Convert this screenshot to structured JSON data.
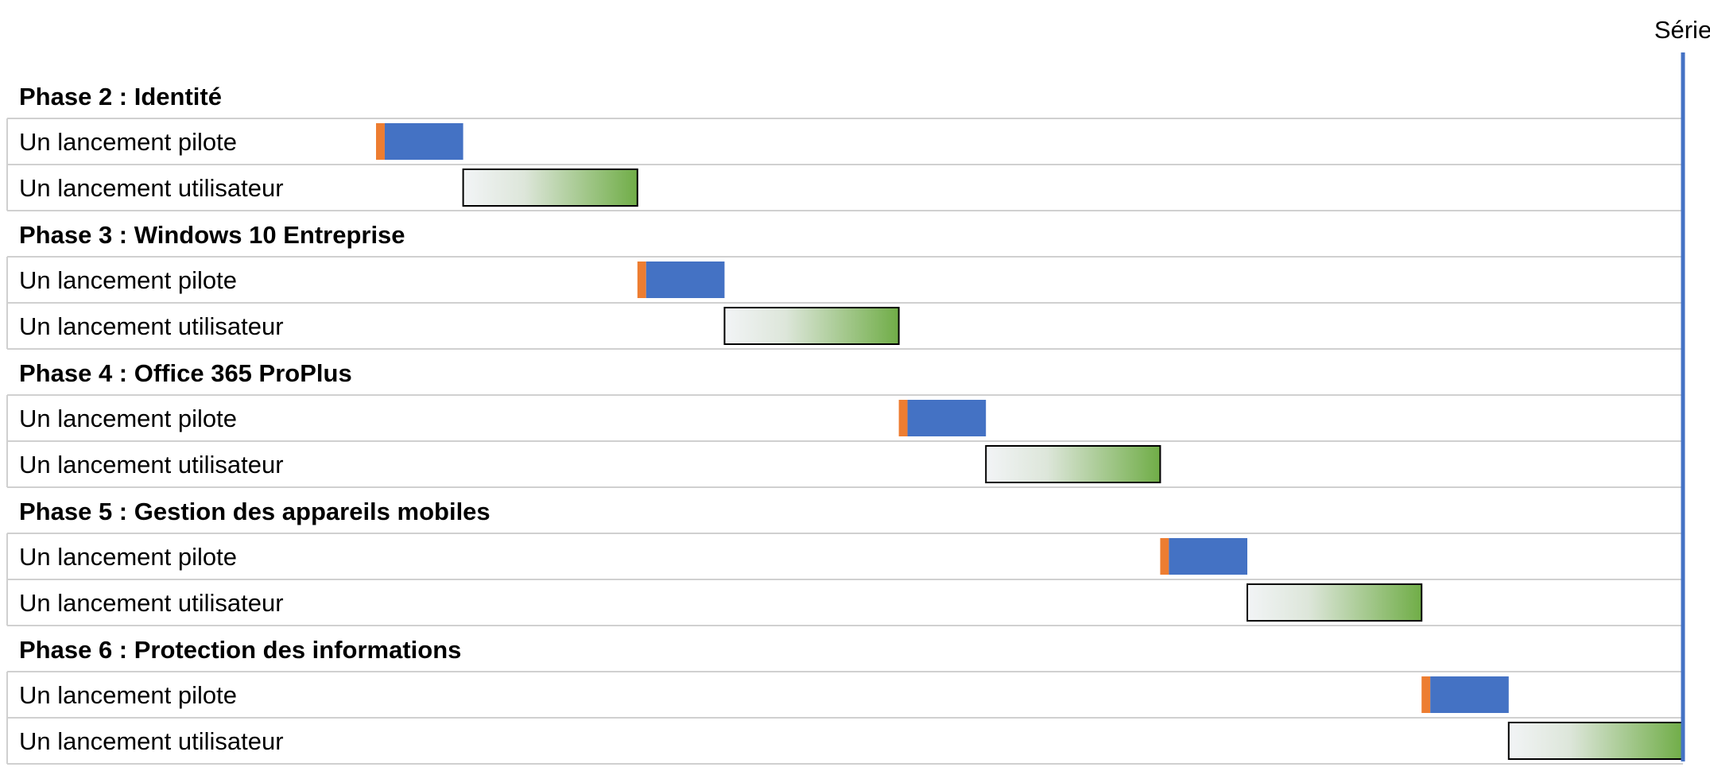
{
  "chart_data": {
    "type": "bar",
    "series_label": "Série",
    "colors": {
      "pilot_marker": "#ED7D31",
      "pilot_bar": "#4472C4",
      "user_bar_start": "#F2F4F6",
      "user_bar_end": "#70AD47",
      "user_bar_border": "#000000",
      "series_line": "#4472C4",
      "grid": "#D0D0D0"
    },
    "phases": [
      {
        "label": "Phase 2 : Identité",
        "tasks": [
          {
            "label": "Un lancement pilote",
            "kind": "pilot",
            "start": 0,
            "marker": 0.1,
            "end": 1
          },
          {
            "label": "Un lancement utilisateur",
            "kind": "user",
            "start": 1,
            "end": 3
          }
        ]
      },
      {
        "label": "Phase 3 : Windows 10 Entreprise",
        "tasks": [
          {
            "label": "Un lancement pilote",
            "kind": "pilot",
            "start": 3,
            "marker": 0.1,
            "end": 4
          },
          {
            "label": "Un lancement utilisateur",
            "kind": "user",
            "start": 4,
            "end": 6
          }
        ]
      },
      {
        "label": "Phase 4 : Office 365 ProPlus",
        "tasks": [
          {
            "label": "Un lancement pilote",
            "kind": "pilot",
            "start": 6,
            "marker": 0.1,
            "end": 7
          },
          {
            "label": "Un lancement utilisateur",
            "kind": "user",
            "start": 7,
            "end": 9
          }
        ]
      },
      {
        "label": "Phase 5 : Gestion des appareils mobiles",
        "tasks": [
          {
            "label": "Un lancement pilote",
            "kind": "pilot",
            "start": 9,
            "marker": 0.1,
            "end": 10
          },
          {
            "label": "Un lancement utilisateur",
            "kind": "user",
            "start": 10,
            "end": 12
          }
        ]
      },
      {
        "label": "Phase 6 : Protection des informations",
        "tasks": [
          {
            "label": "Un lancement pilote",
            "kind": "pilot",
            "start": 12,
            "marker": 0.1,
            "end": 13
          },
          {
            "label": "Un lancement utilisateur",
            "kind": "user",
            "start": 13,
            "end": 15
          }
        ]
      }
    ],
    "xlim": [
      0,
      15
    ],
    "grid": true
  }
}
